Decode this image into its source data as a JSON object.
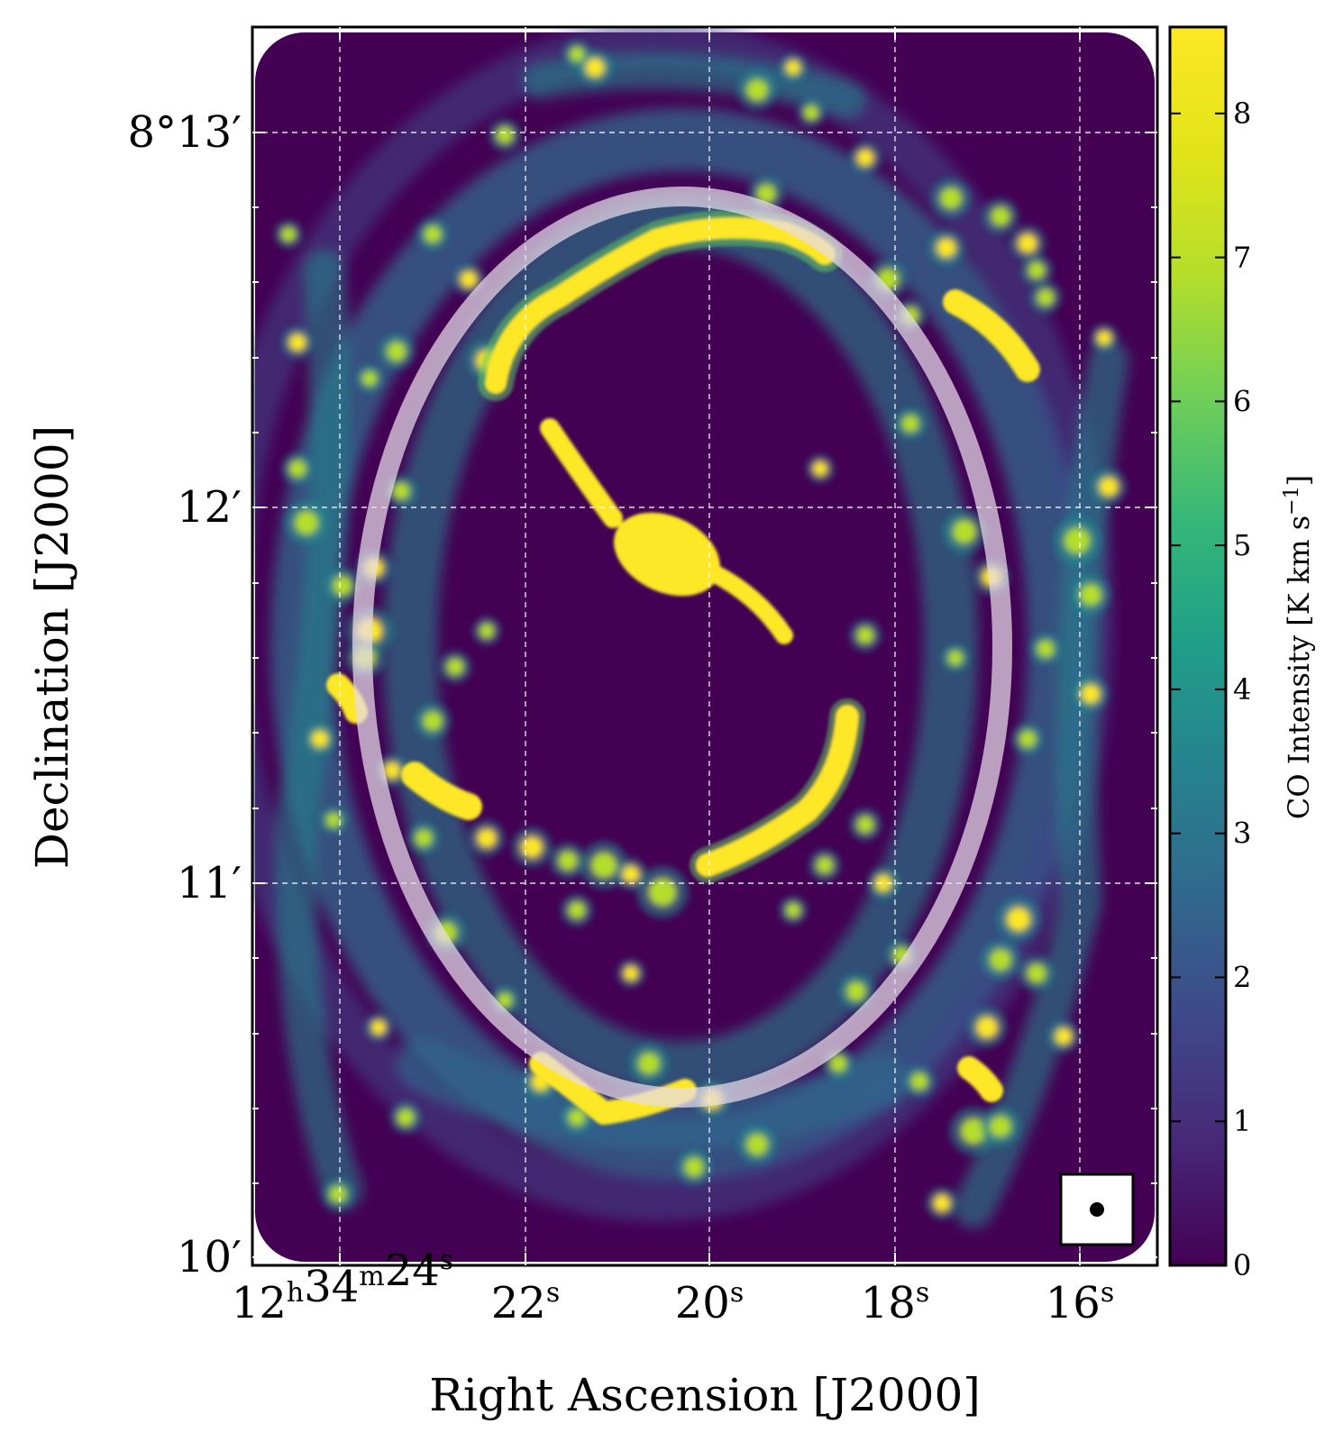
{
  "chart_data": {
    "type": "heatmap",
    "title": "",
    "xlabel": "Right Ascension [J2000]",
    "ylabel": "Declination [J2000]",
    "x_ticks": [
      {
        "value": "12h34m24s",
        "parts": [
          [
            "12",
            ""
          ],
          [
            "h",
            "sup"
          ],
          [
            "34",
            ""
          ],
          [
            "m",
            "sup"
          ],
          [
            "24",
            ""
          ],
          [
            "s",
            "sup"
          ]
        ]
      },
      {
        "value": "22s",
        "parts": [
          [
            "22",
            ""
          ],
          [
            "s",
            "sup"
          ]
        ]
      },
      {
        "value": "20s",
        "parts": [
          [
            "20",
            ""
          ],
          [
            "s",
            "sup"
          ]
        ]
      },
      {
        "value": "18s",
        "parts": [
          [
            "18",
            ""
          ],
          [
            "s",
            "sup"
          ]
        ]
      },
      {
        "value": "16s",
        "parts": [
          [
            "16",
            ""
          ],
          [
            "s",
            "sup"
          ]
        ]
      }
    ],
    "y_ticks": [
      "8°13′",
      "12′",
      "11′",
      "10′"
    ],
    "grid": true,
    "grid_style": "dashed white",
    "colorbar": {
      "label": "CO Intensity [K km s",
      "label_sup": "−1",
      "label_end": "]",
      "min": 0,
      "max": 8.6,
      "ticks": [
        0,
        1,
        2,
        3,
        4,
        5,
        6,
        7,
        8
      ],
      "colormap": "viridis"
    },
    "overlays": {
      "ellipse": "white translucent elliptical annulus",
      "beam": "filled black circle in white box, bottom-right"
    },
    "colors": {
      "background": "#440154",
      "low": "#31688e",
      "mid": "#21918c",
      "high": "#5ec962",
      "peak": "#fde725",
      "ellipse": "#e8dcea"
    }
  }
}
